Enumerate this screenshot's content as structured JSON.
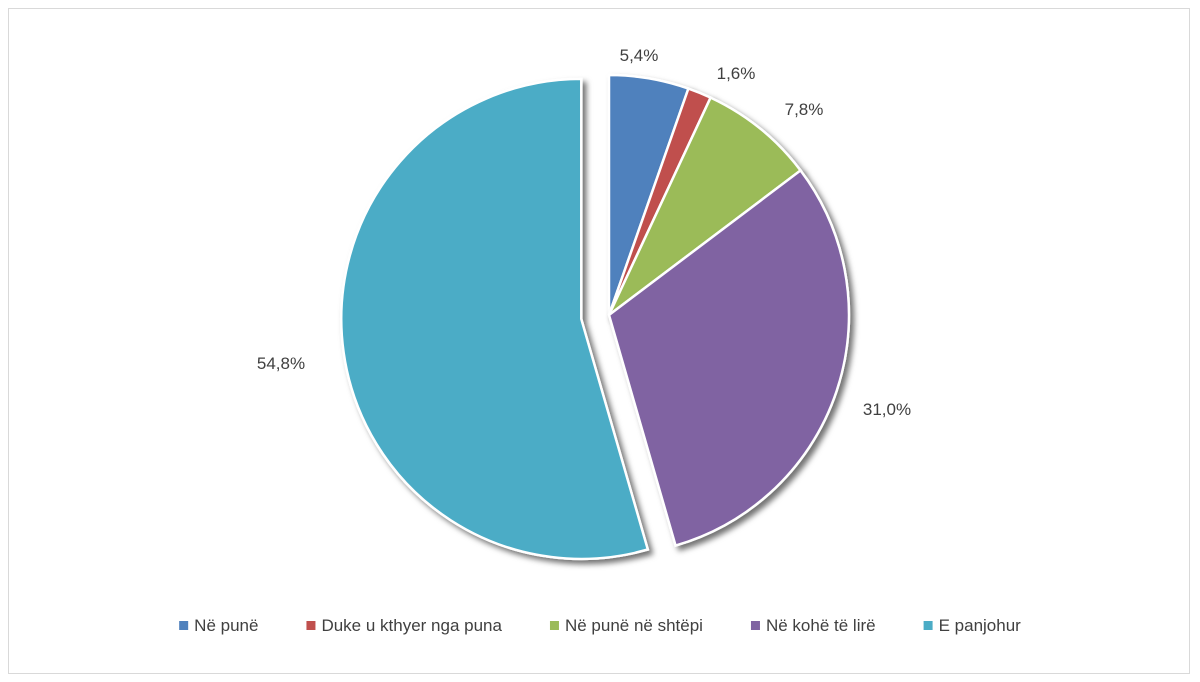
{
  "chart_data": {
    "type": "pie",
    "slices": [
      {
        "label": "Në punë",
        "value": 5.4,
        "display": "5,4%",
        "color": "#4F81BD"
      },
      {
        "label": "Duke u kthyer nga puna",
        "value": 1.6,
        "display": "1,6%",
        "color": "#C0504D"
      },
      {
        "label": "Në punë në shtëpi",
        "value": 7.8,
        "display": "7,8%",
        "color": "#9BBB59"
      },
      {
        "label": "Në kohë të lirë",
        "value": 31.0,
        "display": "31,0%",
        "color": "#8064A2"
      },
      {
        "label": "E panjohur",
        "value": 54.8,
        "display": "54,8%",
        "color": "#4BACC6",
        "exploded": true
      }
    ],
    "legend_position": "bottom",
    "start_angle": "12 o'clock",
    "direction": "clockwise"
  }
}
